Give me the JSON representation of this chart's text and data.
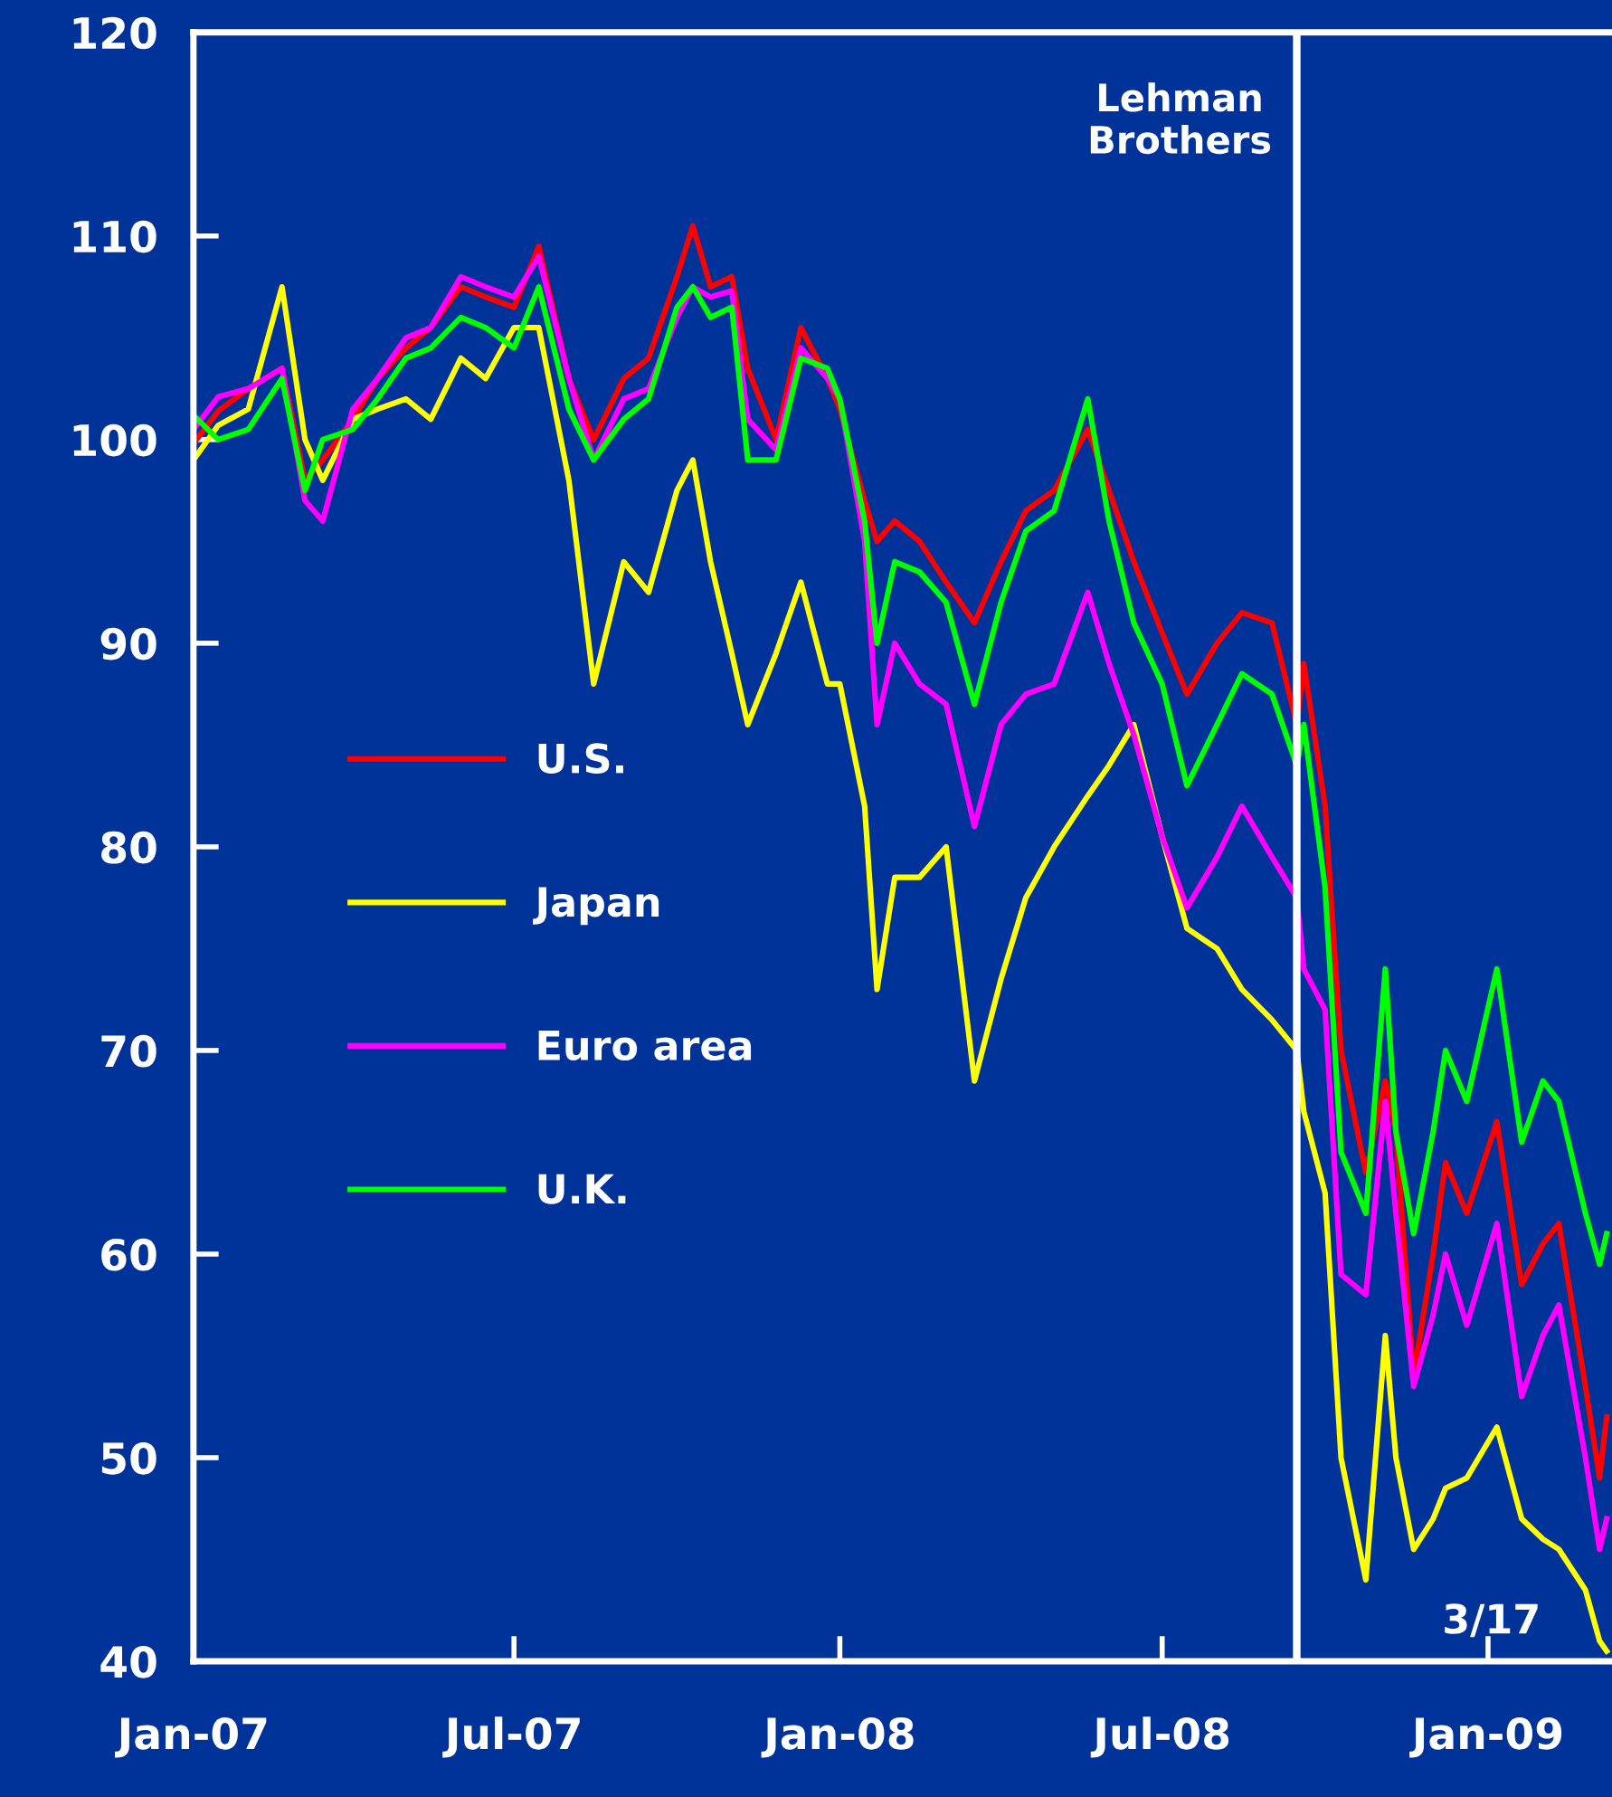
{
  "chart_data": {
    "type": "line",
    "x": [
      "2007-01-01",
      "2007-01-15",
      "2007-02-01",
      "2007-02-20",
      "2007-03-05",
      "2007-03-15",
      "2007-04-01",
      "2007-04-15",
      "2007-05-01",
      "2007-05-15",
      "2007-06-01",
      "2007-06-15",
      "2007-07-01",
      "2007-07-15",
      "2007-08-01",
      "2007-08-15",
      "2007-09-01",
      "2007-09-15",
      "2007-10-01",
      "2007-10-10",
      "2007-10-20",
      "2007-11-01",
      "2007-11-10",
      "2007-11-26",
      "2007-12-10",
      "2007-12-25",
      "2008-01-01",
      "2008-01-15",
      "2008-01-22",
      "2008-02-01",
      "2008-02-15",
      "2008-03-01",
      "2008-03-17",
      "2008-04-01",
      "2008-04-15",
      "2008-05-01",
      "2008-05-20",
      "2008-06-01",
      "2008-06-15",
      "2008-07-01",
      "2008-07-15",
      "2008-08-01",
      "2008-08-15",
      "2008-09-01",
      "2008-09-15",
      "2008-09-19",
      "2008-10-01",
      "2008-10-10",
      "2008-10-24",
      "2008-11-04",
      "2008-11-10",
      "2008-11-20",
      "2008-12-01",
      "2008-12-08",
      "2008-12-20",
      "2009-01-06",
      "2009-01-20",
      "2009-02-01",
      "2009-02-10",
      "2009-02-25",
      "2009-03-05",
      "2009-03-09"
    ],
    "series": [
      {
        "name": "U.S.",
        "color": "#ff0000",
        "values": [
          99.8,
          101.4,
          102.5,
          103.5,
          98,
          99,
          101,
          103,
          104.5,
          105.5,
          107.5,
          107,
          106.5,
          109.5,
          103,
          100,
          103,
          104,
          108,
          110.5,
          107.5,
          108,
          103.5,
          100,
          105.5,
          103,
          101.5,
          97,
          95,
          96,
          95,
          93,
          91,
          94,
          96.5,
          97.5,
          100.5,
          97.5,
          94,
          90.5,
          87.5,
          90,
          91.5,
          91,
          86,
          89,
          82,
          70,
          64,
          68.5,
          66,
          54,
          60,
          64.5,
          62,
          66.5,
          58.5,
          60.5,
          61.5,
          53.5,
          49,
          52
        ]
      },
      {
        "name": "Japan",
        "color": "#ffff00",
        "values": [
          99,
          100.7,
          101.5,
          107.5,
          100,
          98,
          101,
          101.5,
          102,
          101,
          104,
          103,
          105.5,
          105.5,
          98,
          88,
          94,
          92.5,
          97.5,
          99,
          94,
          89.5,
          86,
          89.5,
          93,
          88,
          88,
          82,
          73,
          78.5,
          78.5,
          80,
          68.5,
          73.5,
          77.5,
          80,
          82.5,
          84,
          86,
          80.5,
          76,
          75,
          73,
          71.5,
          70,
          67,
          63,
          50,
          44,
          56,
          50,
          45.5,
          47,
          48.5,
          49,
          51.5,
          47,
          46,
          45.5,
          43.5,
          41,
          40.5
        ]
      },
      {
        "name": "Euro area",
        "color": "#ff00ff",
        "values": [
          100.5,
          102.1,
          102.5,
          103.5,
          97,
          96,
          101.5,
          103,
          105,
          105.5,
          108,
          107.5,
          107,
          109,
          103,
          99,
          102,
          102.5,
          106,
          107.5,
          107,
          107.3,
          101,
          99.5,
          104.5,
          103,
          102,
          95,
          86,
          90,
          88,
          87,
          81,
          86,
          87.5,
          88,
          92.5,
          89,
          85.5,
          80.5,
          77,
          79.5,
          82,
          79.5,
          77.5,
          74,
          72,
          59,
          58,
          67.5,
          62,
          53.5,
          57,
          60,
          56.5,
          61.5,
          53,
          56,
          57.5,
          50,
          45.5,
          47
        ]
      },
      {
        "name": "U.K.",
        "color": "#00ff00",
        "values": [
          101.2,
          100,
          100.5,
          103,
          97.5,
          100,
          100.5,
          102,
          104,
          104.5,
          106,
          105.5,
          104.5,
          107.5,
          101.5,
          99,
          101,
          102,
          106.5,
          107.5,
          106,
          106.5,
          99,
          99,
          104,
          103.5,
          102,
          96,
          90,
          94,
          93.5,
          92,
          87,
          92,
          95.5,
          96.5,
          102,
          96,
          91,
          88,
          83,
          86,
          88.5,
          87.5,
          84,
          86,
          78,
          65,
          62,
          74,
          66,
          61,
          66,
          70,
          67.5,
          74,
          65.5,
          68.5,
          67.5,
          62,
          59.5,
          61
        ]
      }
    ],
    "ylim": [
      40,
      120
    ],
    "yticks": [
      40,
      50,
      60,
      70,
      80,
      90,
      100,
      110,
      120
    ],
    "xlim": [
      "2007-01-01",
      "2009-03-12"
    ],
    "xticks": [
      {
        "value": "2007-01-01",
        "label": "Jan-07"
      },
      {
        "value": "2007-07-01",
        "label": "Jul-07"
      },
      {
        "value": "2008-01-01",
        "label": "Jan-08"
      },
      {
        "value": "2008-07-01",
        "label": "Jul-08"
      },
      {
        "value": "2009-01-01",
        "label": "Jan-09"
      }
    ],
    "ref_lines": [
      {
        "axis": "x",
        "value": "2008-09-15",
        "label": "Lehman\nBrothers",
        "color": "#ffffff"
      }
    ],
    "annotations": [
      "3/17"
    ],
    "legend": "center left",
    "grid": false,
    "marker": "none",
    "line_style": "solid"
  }
}
